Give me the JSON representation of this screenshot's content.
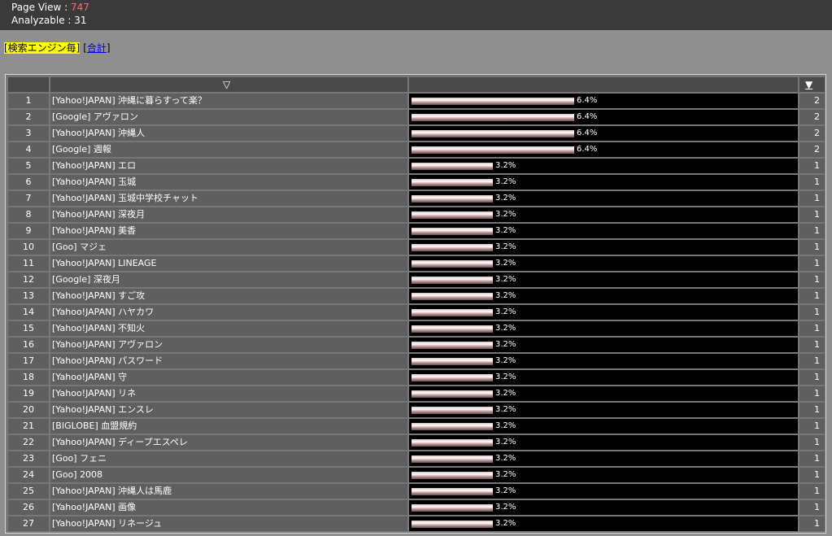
{
  "summary": {
    "page_view_label": "Page View : ",
    "page_view_value": "747",
    "analyzable_label": "Analyzable : ",
    "analyzable_value": "31"
  },
  "nav": {
    "current": "[検索エンジン毎]",
    "separator": " [",
    "total_link": "合計",
    "close": "]"
  },
  "table": {
    "header": {
      "keyword_sort_icon": "▽",
      "count_sort_icon": "▼"
    },
    "rows": [
      {
        "rank": "1",
        "keyword": "[Yahoo!JAPAN] 沖縄に暮らすって楽？",
        "pct": "6.4%",
        "share": 0.064,
        "count": "2"
      },
      {
        "rank": "2",
        "keyword": "[Google] アヴァロン",
        "pct": "6.4%",
        "share": 0.064,
        "count": "2"
      },
      {
        "rank": "3",
        "keyword": "[Yahoo!JAPAN] 沖縄人",
        "pct": "6.4%",
        "share": 0.064,
        "count": "2"
      },
      {
        "rank": "4",
        "keyword": "[Google] 週報",
        "pct": "6.4%",
        "share": 0.064,
        "count": "2"
      },
      {
        "rank": "5",
        "keyword": "[Yahoo!JAPAN] エロ",
        "pct": "3.2%",
        "share": 0.032,
        "count": "1"
      },
      {
        "rank": "6",
        "keyword": "[Yahoo!JAPAN] 玉城",
        "pct": "3.2%",
        "share": 0.032,
        "count": "1"
      },
      {
        "rank": "7",
        "keyword": "[Yahoo!JAPAN] 玉城中学校チャット",
        "pct": "3.2%",
        "share": 0.032,
        "count": "1"
      },
      {
        "rank": "8",
        "keyword": "[Yahoo!JAPAN] 深夜月",
        "pct": "3.2%",
        "share": 0.032,
        "count": "1"
      },
      {
        "rank": "9",
        "keyword": "[Yahoo!JAPAN] 美香",
        "pct": "3.2%",
        "share": 0.032,
        "count": "1"
      },
      {
        "rank": "10",
        "keyword": "[Goo] マジェ",
        "pct": "3.2%",
        "share": 0.032,
        "count": "1"
      },
      {
        "rank": "11",
        "keyword": "[Yahoo!JAPAN] LINEAGE",
        "pct": "3.2%",
        "share": 0.032,
        "count": "1"
      },
      {
        "rank": "12",
        "keyword": "[Google] 深夜月",
        "pct": "3.2%",
        "share": 0.032,
        "count": "1"
      },
      {
        "rank": "13",
        "keyword": "[Yahoo!JAPAN] すご攻",
        "pct": "3.2%",
        "share": 0.032,
        "count": "1"
      },
      {
        "rank": "14",
        "keyword": "[Yahoo!JAPAN] ハヤカワ",
        "pct": "3.2%",
        "share": 0.032,
        "count": "1"
      },
      {
        "rank": "15",
        "keyword": "[Yahoo!JAPAN] 不知火",
        "pct": "3.2%",
        "share": 0.032,
        "count": "1"
      },
      {
        "rank": "16",
        "keyword": "[Yahoo!JAPAN] アヴァロン",
        "pct": "3.2%",
        "share": 0.032,
        "count": "1"
      },
      {
        "rank": "17",
        "keyword": "[Yahoo!JAPAN] パスワード",
        "pct": "3.2%",
        "share": 0.032,
        "count": "1"
      },
      {
        "rank": "18",
        "keyword": "[Yahoo!JAPAN] 守",
        "pct": "3.2%",
        "share": 0.032,
        "count": "1"
      },
      {
        "rank": "19",
        "keyword": "[Yahoo!JAPAN] リネ",
        "pct": "3.2%",
        "share": 0.032,
        "count": "1"
      },
      {
        "rank": "20",
        "keyword": "[Yahoo!JAPAN] エンスレ",
        "pct": "3.2%",
        "share": 0.032,
        "count": "1"
      },
      {
        "rank": "21",
        "keyword": "[BIGLOBE] 血盟規約",
        "pct": "3.2%",
        "share": 0.032,
        "count": "1"
      },
      {
        "rank": "22",
        "keyword": "[Yahoo!JAPAN] ディープエスペレ",
        "pct": "3.2%",
        "share": 0.032,
        "count": "1"
      },
      {
        "rank": "23",
        "keyword": "[Goo] フェニ",
        "pct": "3.2%",
        "share": 0.032,
        "count": "1"
      },
      {
        "rank": "24",
        "keyword": "[Goo] 2008",
        "pct": "3.2%",
        "share": 0.032,
        "count": "1"
      },
      {
        "rank": "25",
        "keyword": "[Yahoo!JAPAN] 沖縄人は馬鹿",
        "pct": "3.2%",
        "share": 0.032,
        "count": "1"
      },
      {
        "rank": "26",
        "keyword": "[Yahoo!JAPAN] 画像",
        "pct": "3.2%",
        "share": 0.032,
        "count": "1"
      },
      {
        "rank": "27",
        "keyword": "[Yahoo!JAPAN] リネージュ",
        "pct": "3.2%",
        "share": 0.032,
        "count": "1"
      }
    ]
  }
}
